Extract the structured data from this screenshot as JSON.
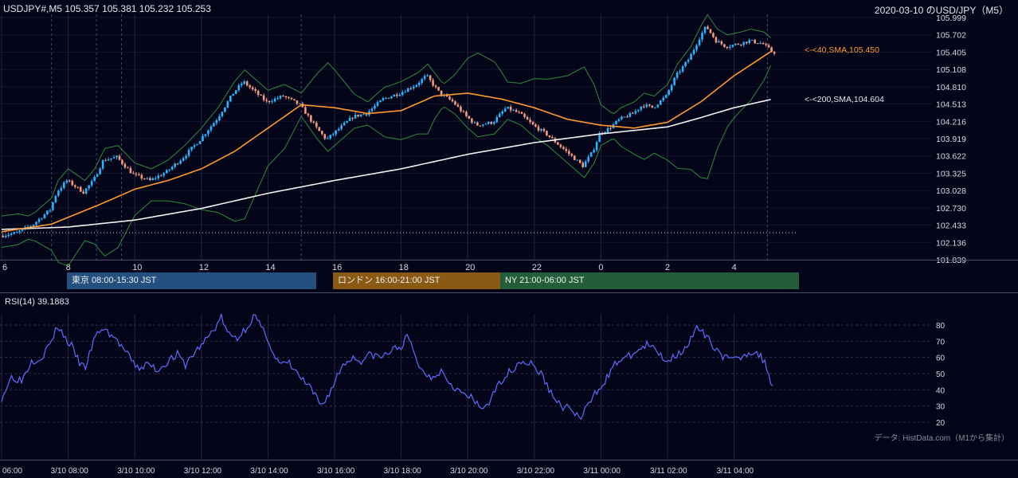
{
  "header": {
    "symbol_info": "USDJPY#,M5 105.357 105.381 105.232 105.253",
    "title": "2020-03-10 のUSD/JPY（M5）"
  },
  "colors": {
    "background": "#050519",
    "bull_candle": "#28b4ff",
    "bear_candle": "#f59a7e",
    "sma40": "#ff9a2e",
    "sma200": "#f2f2f2",
    "bollinger": "#2e8b3a",
    "rsi": "#5f6cff",
    "tokyo": "#23507e",
    "london": "#8a5a14",
    "ny": "#235e3a"
  },
  "sessions": [
    {
      "label": "東京 08:00-15:30 JST",
      "color": "#23507e"
    },
    {
      "label": "ロンドン 16:00-21:00 JST",
      "color": "#8a5a14"
    },
    {
      "label": "NY 21:00-06:00 JST",
      "color": "#235e3a"
    }
  ],
  "rsi": {
    "title": "RSI(14) 39.1883",
    "levels": [
      80,
      70,
      60,
      50,
      40,
      30,
      20
    ]
  },
  "credit": "データ: HistData.com（M1から集計）",
  "chart_data": {
    "type": "candlestick",
    "timeframe": "M5",
    "price_ticks": [
      "105.999",
      "105.702",
      "105.405",
      "105.108",
      "104.810",
      "104.513",
      "104.216",
      "103.919",
      "103.622",
      "103.325",
      "103.028",
      "102.730",
      "102.433",
      "102.136",
      "101.839"
    ],
    "ylim": [
      101.839,
      105.999
    ],
    "hour_ticks": [
      "6",
      "8",
      "10",
      "12",
      "14",
      "16",
      "18",
      "20",
      "22",
      "0",
      "2",
      "4"
    ],
    "time_ticks": [
      "06:00",
      "3/10 08:00",
      "3/10 10:00",
      "3/10 12:00",
      "3/10 14:00",
      "3/10 16:00",
      "3/10 18:00",
      "3/10 20:00",
      "3/10 22:00",
      "3/11 00:00",
      "3/11 02:00",
      "3/11 04:00"
    ],
    "series": [
      {
        "name": "<-<40,SMA,105.450",
        "value": 105.45
      },
      {
        "name": "<-<200,SMA,104.604",
        "value": 104.604
      }
    ],
    "price_path": [
      [
        6.0,
        102.25
      ],
      [
        6.5,
        102.3
      ],
      [
        7.0,
        102.45
      ],
      [
        7.5,
        102.7
      ],
      [
        7.7,
        103.0
      ],
      [
        8.0,
        103.2
      ],
      [
        8.5,
        103.0
      ],
      [
        8.8,
        103.2
      ],
      [
        9.1,
        103.55
      ],
      [
        9.5,
        103.6
      ],
      [
        10.0,
        103.3
      ],
      [
        10.5,
        103.2
      ],
      [
        11.0,
        103.35
      ],
      [
        11.5,
        103.6
      ],
      [
        12.0,
        103.9
      ],
      [
        12.5,
        104.25
      ],
      [
        13.0,
        104.7
      ],
      [
        13.3,
        104.9
      ],
      [
        13.5,
        104.8
      ],
      [
        14.0,
        104.55
      ],
      [
        14.5,
        104.65
      ],
      [
        15.0,
        104.5
      ],
      [
        15.5,
        104.1
      ],
      [
        15.8,
        103.9
      ],
      [
        16.2,
        104.1
      ],
      [
        16.6,
        104.3
      ],
      [
        17.0,
        104.35
      ],
      [
        17.5,
        104.6
      ],
      [
        18.0,
        104.7
      ],
      [
        18.5,
        104.85
      ],
      [
        18.8,
        105.0
      ],
      [
        19.2,
        104.7
      ],
      [
        19.6,
        104.55
      ],
      [
        20.0,
        104.3
      ],
      [
        20.3,
        104.15
      ],
      [
        20.8,
        104.2
      ],
      [
        21.2,
        104.45
      ],
      [
        21.6,
        104.35
      ],
      [
        22.0,
        104.15
      ],
      [
        22.4,
        104.0
      ],
      [
        22.8,
        103.8
      ],
      [
        23.2,
        103.6
      ],
      [
        23.5,
        103.45
      ],
      [
        23.8,
        103.7
      ],
      [
        24.0,
        104.0
      ],
      [
        24.3,
        104.1
      ],
      [
        24.6,
        104.25
      ],
      [
        25.0,
        104.35
      ],
      [
        25.3,
        104.5
      ],
      [
        25.6,
        104.45
      ],
      [
        26.0,
        104.65
      ],
      [
        26.3,
        105.0
      ],
      [
        26.7,
        105.3
      ],
      [
        27.0,
        105.65
      ],
      [
        27.2,
        105.85
      ],
      [
        27.5,
        105.6
      ],
      [
        27.8,
        105.5
      ],
      [
        28.2,
        105.55
      ],
      [
        28.5,
        105.6
      ],
      [
        28.9,
        105.55
      ],
      [
        29.2,
        105.4
      ]
    ],
    "sma40_path": [
      [
        6.0,
        102.32
      ],
      [
        7.5,
        102.45
      ],
      [
        9.0,
        102.8
      ],
      [
        10.0,
        103.05
      ],
      [
        11.0,
        103.2
      ],
      [
        12.0,
        103.4
      ],
      [
        13.0,
        103.7
      ],
      [
        14.0,
        104.1
      ],
      [
        15.0,
        104.5
      ],
      [
        16.0,
        104.45
      ],
      [
        17.0,
        104.35
      ],
      [
        18.0,
        104.4
      ],
      [
        19.0,
        104.65
      ],
      [
        20.0,
        104.7
      ],
      [
        21.0,
        104.6
      ],
      [
        22.0,
        104.45
      ],
      [
        23.0,
        104.25
      ],
      [
        24.0,
        104.15
      ],
      [
        25.0,
        104.1
      ],
      [
        26.0,
        104.2
      ],
      [
        27.0,
        104.55
      ],
      [
        28.0,
        105.0
      ],
      [
        29.2,
        105.45
      ]
    ],
    "sma200_path": [
      [
        6.0,
        102.36
      ],
      [
        8.0,
        102.4
      ],
      [
        10.0,
        102.52
      ],
      [
        12.0,
        102.72
      ],
      [
        14.0,
        102.98
      ],
      [
        16.0,
        103.2
      ],
      [
        18.0,
        103.4
      ],
      [
        20.0,
        103.65
      ],
      [
        22.0,
        103.85
      ],
      [
        24.0,
        104.0
      ],
      [
        26.0,
        104.12
      ],
      [
        27.0,
        104.28
      ],
      [
        28.0,
        104.45
      ],
      [
        29.2,
        104.604
      ]
    ],
    "rsi_path": [
      [
        6.0,
        35
      ],
      [
        6.3,
        48
      ],
      [
        6.6,
        46
      ],
      [
        6.9,
        58
      ],
      [
        7.2,
        60
      ],
      [
        7.5,
        70
      ],
      [
        7.7,
        80
      ],
      [
        7.9,
        72
      ],
      [
        8.1,
        67
      ],
      [
        8.3,
        58
      ],
      [
        8.5,
        53
      ],
      [
        8.8,
        72
      ],
      [
        9.0,
        78
      ],
      [
        9.3,
        74
      ],
      [
        9.6,
        67
      ],
      [
        9.9,
        58
      ],
      [
        10.1,
        53
      ],
      [
        10.4,
        56
      ],
      [
        10.7,
        52
      ],
      [
        11.0,
        58
      ],
      [
        11.3,
        62
      ],
      [
        11.5,
        55
      ],
      [
        11.8,
        63
      ],
      [
        12.1,
        70
      ],
      [
        12.4,
        78
      ],
      [
        12.6,
        85
      ],
      [
        12.8,
        74
      ],
      [
        13.1,
        72
      ],
      [
        13.4,
        80
      ],
      [
        13.6,
        86
      ],
      [
        13.8,
        78
      ],
      [
        14.0,
        72
      ],
      [
        14.2,
        60
      ],
      [
        14.4,
        55
      ],
      [
        14.6,
        57
      ],
      [
        14.8,
        52
      ],
      [
        15.0,
        47
      ],
      [
        15.3,
        40
      ],
      [
        15.6,
        30
      ],
      [
        15.9,
        40
      ],
      [
        16.2,
        54
      ],
      [
        16.5,
        60
      ],
      [
        16.8,
        58
      ],
      [
        17.1,
        62
      ],
      [
        17.4,
        60
      ],
      [
        17.7,
        64
      ],
      [
        18.0,
        67
      ],
      [
        18.2,
        73
      ],
      [
        18.4,
        62
      ],
      [
        18.6,
        52
      ],
      [
        18.9,
        48
      ],
      [
        19.2,
        52
      ],
      [
        19.5,
        44
      ],
      [
        19.8,
        38
      ],
      [
        20.1,
        35
      ],
      [
        20.4,
        28
      ],
      [
        20.7,
        34
      ],
      [
        21.0,
        46
      ],
      [
        21.3,
        52
      ],
      [
        21.6,
        58
      ],
      [
        21.9,
        56
      ],
      [
        22.2,
        50
      ],
      [
        22.5,
        38
      ],
      [
        22.8,
        30
      ],
      [
        23.1,
        28
      ],
      [
        23.4,
        22
      ],
      [
        23.6,
        30
      ],
      [
        23.9,
        40
      ],
      [
        24.2,
        48
      ],
      [
        24.5,
        58
      ],
      [
        24.8,
        60
      ],
      [
        25.1,
        64
      ],
      [
        25.4,
        68
      ],
      [
        25.7,
        63
      ],
      [
        26.0,
        58
      ],
      [
        26.3,
        62
      ],
      [
        26.6,
        68
      ],
      [
        26.9,
        78
      ],
      [
        27.1,
        74
      ],
      [
        27.4,
        67
      ],
      [
        27.7,
        60
      ],
      [
        28.0,
        58
      ],
      [
        28.3,
        62
      ],
      [
        28.6,
        64
      ],
      [
        28.9,
        58
      ],
      [
        29.2,
        40
      ]
    ]
  }
}
